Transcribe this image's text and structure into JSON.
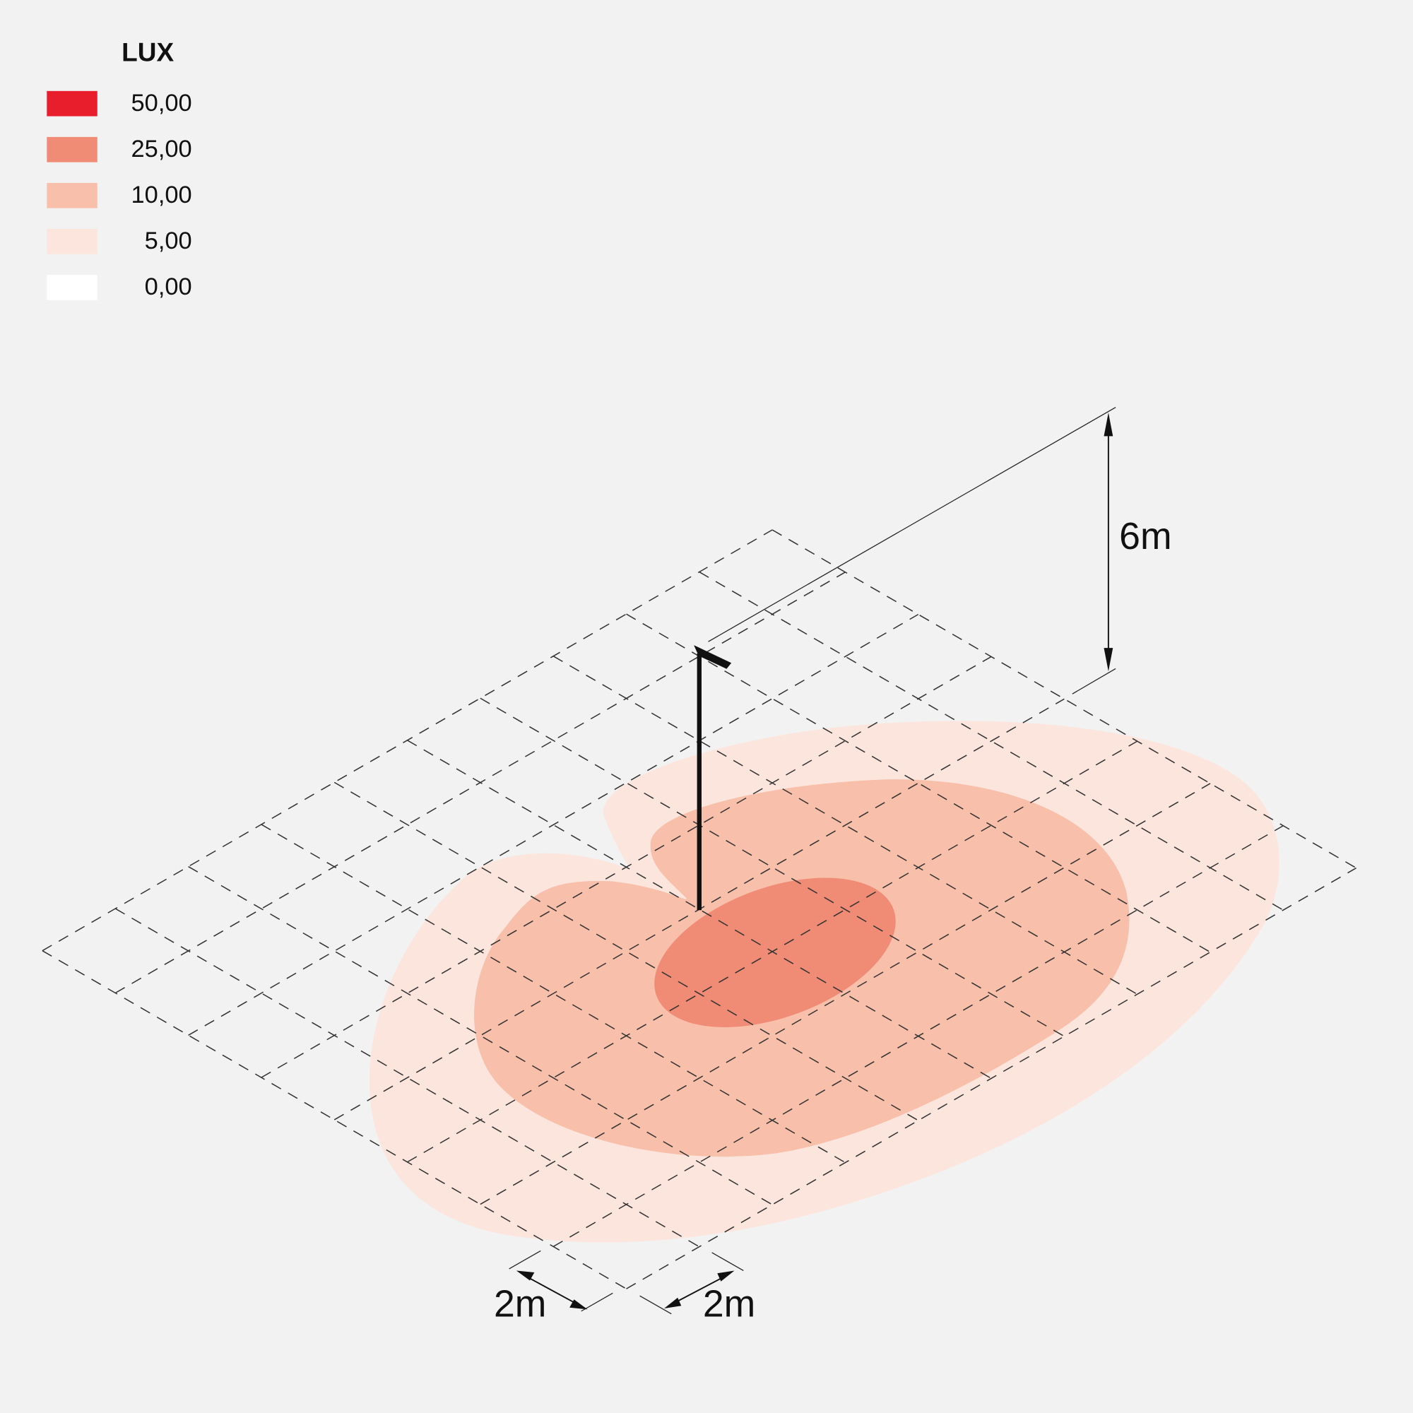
{
  "legend": {
    "title": "LUX",
    "items": [
      {
        "label": "50,00",
        "color": "#e81e2d"
      },
      {
        "label": "25,00",
        "color": "#f08b76"
      },
      {
        "label": "10,00",
        "color": "#f8bfaa"
      },
      {
        "label": "5,00",
        "color": "#fce5dd"
      },
      {
        "label": "0,00",
        "color": "#ffffff"
      }
    ]
  },
  "dimensions": {
    "height": "6m",
    "grid_left": "2m",
    "grid_right": "2m"
  }
}
